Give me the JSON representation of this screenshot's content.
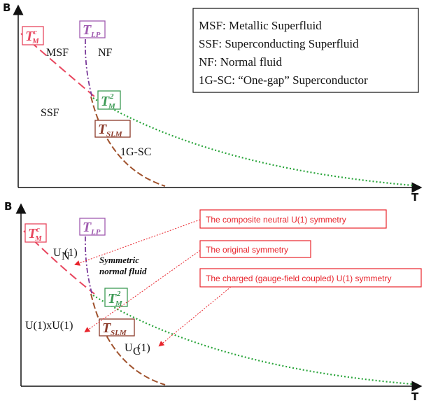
{
  "colors": {
    "tmc": "#e8475f",
    "tlp": "#a05cb0",
    "tm2": "#3d9a55",
    "tslm": "#8b3a2a",
    "green_curve": "#2aa53b",
    "brown_curve": "#a0522d",
    "note_red": "#e8242c"
  },
  "top": {
    "axis_y": "B",
    "axis_x": "T",
    "labels": {
      "tmc": "T",
      "tmc_sup": "c",
      "tmc_sub": "M",
      "tlp": "T",
      "tlp_sub": "LP",
      "tm2": "T",
      "tm2_sup": "2",
      "tm2_sub": "M",
      "tslm": "T",
      "tslm_sub": "SLM",
      "msf": "MSF",
      "nf": "NF",
      "ssf": "SSF",
      "onegap": "1G-SC"
    },
    "legend": [
      "MSF: Metallic Superfluid",
      "SSF:   Superconducting Superfluid",
      "NF:    Normal fluid",
      "1G-SC: “One-gap”  Superconductor"
    ]
  },
  "bottom": {
    "axis_y": "B",
    "axis_x": "T",
    "labels": {
      "un": "U",
      "un_sub": "N",
      "un_tail": "(1)",
      "sym1": "Symmetric",
      "sym2": "normal fluid",
      "uxu": "U(1)xU(1)",
      "uc": "U",
      "uc_sub": "C",
      "uc_tail": "(1)"
    },
    "notes": [
      "The composite neutral U(1) symmetry",
      "The original symmetry",
      "The charged (gauge-field coupled) U(1) symmetry"
    ]
  }
}
